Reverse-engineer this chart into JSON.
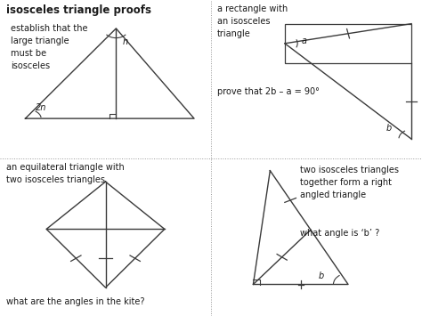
{
  "title": "isosceles triangle proofs",
  "bg_color": "#ffffff",
  "line_color": "#3a3a3a",
  "text_color": "#1a1a1a",
  "divider_color": "#999999",
  "quadrants": {
    "q1": {
      "label": "establish that the\nlarge triangle\nmust be\nisosceles",
      "angle_label_n": "n",
      "angle_label_2n": "2n"
    },
    "q2": {
      "label": "a rectangle with\nan isosceles\ntriangle",
      "prove_text": "prove that 2b – a = 90°",
      "angle_a": "a",
      "angle_b": "b"
    },
    "q3": {
      "label": "an equilateral triangle with\ntwo isosceles triangles",
      "question": "what are the angles in the kite?"
    },
    "q4": {
      "label": "two isosceles triangles\ntogether form a right\nangled triangle",
      "question": "what angle is ‘b’ ?",
      "angle_b": "b"
    }
  }
}
